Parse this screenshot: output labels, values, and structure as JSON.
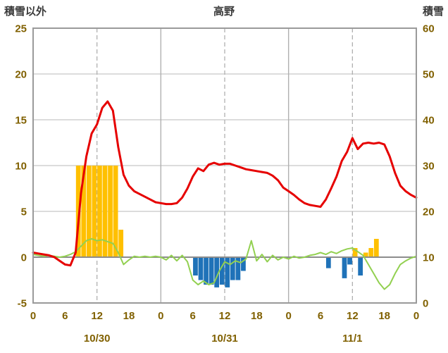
{
  "chart_data": {
    "type": "combo",
    "title": "高野",
    "legend": "none",
    "grid": true,
    "left_axis": {
      "label": "積雪以外",
      "min": -5,
      "max": 25,
      "ticks": [
        -5,
        0,
        5,
        10,
        15,
        20,
        25
      ]
    },
    "right_axis": {
      "label": "積雪",
      "min": 0,
      "max": 60,
      "ticks": [
        0,
        10,
        20,
        30,
        40,
        50,
        60
      ]
    },
    "x_axis": {
      "unit": "hour",
      "max_hour": 72,
      "hour_tick_step": 6,
      "hour_labels": [
        "0",
        "6",
        "12",
        "18",
        "0",
        "6",
        "12",
        "18",
        "0",
        "6",
        "12",
        "18",
        "0"
      ],
      "day_lines": [
        24,
        48
      ],
      "noon_lines": [
        12,
        36,
        60
      ],
      "day_labels": [
        {
          "label": "10/30",
          "center_hour": 12
        },
        {
          "label": "10/31",
          "center_hour": 36
        },
        {
          "label": "11/1",
          "center_hour": 60
        }
      ]
    },
    "colors": {
      "background": "#ffffff",
      "grid": "#c6c6c6",
      "day_line": "#b0b0b0",
      "noon_line": "#b0b0b0",
      "zero_line": "#8c8c8c",
      "axis_border": "#9a9a9a",
      "tick_text": "#806000",
      "title_text": "#3a3a3a",
      "red_line": "#e60000",
      "green_line": "#92d050",
      "orange_bar": "#ffc000",
      "blue_bar": "#1f72b8"
    },
    "series": [
      {
        "name": "orange-bars",
        "type": "bar",
        "color": "#ffc000",
        "points": [
          [
            8,
            10
          ],
          [
            9,
            10
          ],
          [
            10,
            10
          ],
          [
            11,
            10
          ],
          [
            12,
            10
          ],
          [
            13,
            10
          ],
          [
            14,
            10
          ],
          [
            15,
            10
          ],
          [
            16,
            3
          ],
          [
            60,
            1.0
          ],
          [
            62,
            0.5
          ],
          [
            63,
            1.0
          ],
          [
            64,
            2.0
          ]
        ]
      },
      {
        "name": "blue-bars",
        "type": "bar",
        "color": "#1f72b8",
        "points": [
          [
            30,
            -2.0
          ],
          [
            31,
            -2.5
          ],
          [
            32,
            -3.0
          ],
          [
            33,
            -3.0
          ],
          [
            34,
            -3.3
          ],
          [
            35,
            -3.0
          ],
          [
            36,
            -3.3
          ],
          [
            37,
            -2.5
          ],
          [
            38,
            -2.5
          ],
          [
            39,
            -1.5
          ],
          [
            55,
            -1.2
          ],
          [
            58,
            -2.3
          ],
          [
            59,
            -0.8
          ],
          [
            61,
            -2.0
          ]
        ]
      },
      {
        "name": "green-line",
        "type": "line",
        "color": "#92d050",
        "width": 2,
        "values": [
          0.3,
          0.2,
          0.1,
          0.2,
          0.1,
          0.0,
          0.1,
          0.3,
          0.6,
          1.2,
          1.8,
          2.0,
          1.8,
          1.9,
          1.7,
          1.5,
          0.5,
          -0.8,
          -0.3,
          0.1,
          0.0,
          0.1,
          0.0,
          0.1,
          0.0,
          -0.3,
          0.2,
          -0.4,
          0.2,
          -0.5,
          -2.5,
          -3.0,
          -2.6,
          -3.0,
          -2.8,
          -1.5,
          -0.5,
          -0.8,
          -0.4,
          -0.6,
          -0.2,
          1.8,
          -0.4,
          0.3,
          -0.5,
          0.2,
          -0.3,
          0.0,
          -0.2,
          0.1,
          -0.1,
          0.0,
          0.2,
          0.3,
          0.5,
          0.3,
          0.6,
          0.4,
          0.7,
          0.9,
          1.0,
          0.6,
          0.2,
          -0.8,
          -1.8,
          -2.8,
          -3.5,
          -3.0,
          -1.8,
          -0.8,
          -0.4,
          -0.1,
          0.1
        ]
      },
      {
        "name": "red-line",
        "type": "line",
        "color": "#e60000",
        "width": 3,
        "values": [
          0.5,
          0.4,
          0.3,
          0.2,
          0.0,
          -0.4,
          -0.8,
          -0.9,
          0.5,
          7.0,
          11.0,
          13.5,
          14.5,
          16.3,
          17.0,
          16.0,
          12.0,
          9.0,
          7.8,
          7.2,
          6.9,
          6.6,
          6.3,
          6.0,
          5.9,
          5.8,
          5.8,
          5.9,
          6.5,
          7.5,
          8.8,
          9.7,
          9.4,
          10.1,
          10.3,
          10.1,
          10.2,
          10.2,
          10.0,
          9.8,
          9.6,
          9.5,
          9.4,
          9.3,
          9.2,
          8.9,
          8.4,
          7.6,
          7.2,
          6.8,
          6.3,
          5.9,
          5.7,
          5.6,
          5.5,
          6.3,
          7.5,
          8.8,
          10.5,
          11.5,
          13.0,
          11.8,
          12.4,
          12.5,
          12.4,
          12.5,
          12.3,
          11.0,
          9.2,
          7.8,
          7.2,
          6.8,
          6.5
        ]
      }
    ]
  }
}
